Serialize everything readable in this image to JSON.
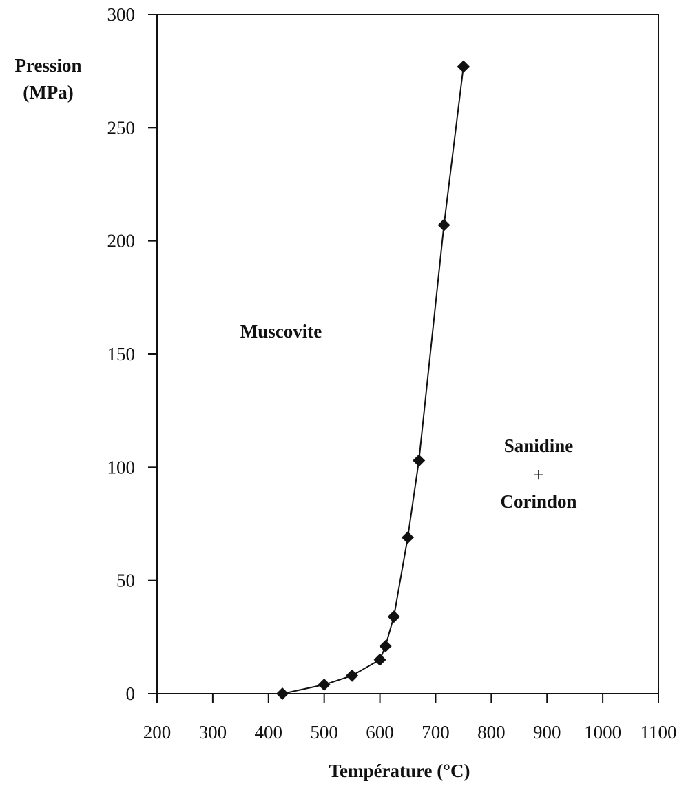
{
  "chart_data": {
    "type": "line",
    "xlabel": "Température (°C)",
    "ylabel_line1": "Pression",
    "ylabel_line2": "(MPa)",
    "xlim": [
      200,
      1100
    ],
    "ylim": [
      0,
      300
    ],
    "xticks": [
      200,
      300,
      400,
      500,
      600,
      700,
      800,
      900,
      1000,
      1100
    ],
    "yticks": [
      0,
      50,
      100,
      150,
      200,
      250,
      300
    ],
    "grid": false,
    "series": [
      {
        "x": [
          425,
          500,
          550,
          600,
          610,
          625,
          650,
          670,
          715,
          750
        ],
        "y": [
          0,
          4,
          8,
          15,
          21,
          34,
          69,
          103,
          207,
          277
        ],
        "marker": "diamond",
        "color": "#111111"
      }
    ],
    "annotations": {
      "region_left": "Muscovite",
      "region_right_line1": "Sanidine",
      "region_right_plus": "+",
      "region_right_line2": "Corindon"
    }
  }
}
